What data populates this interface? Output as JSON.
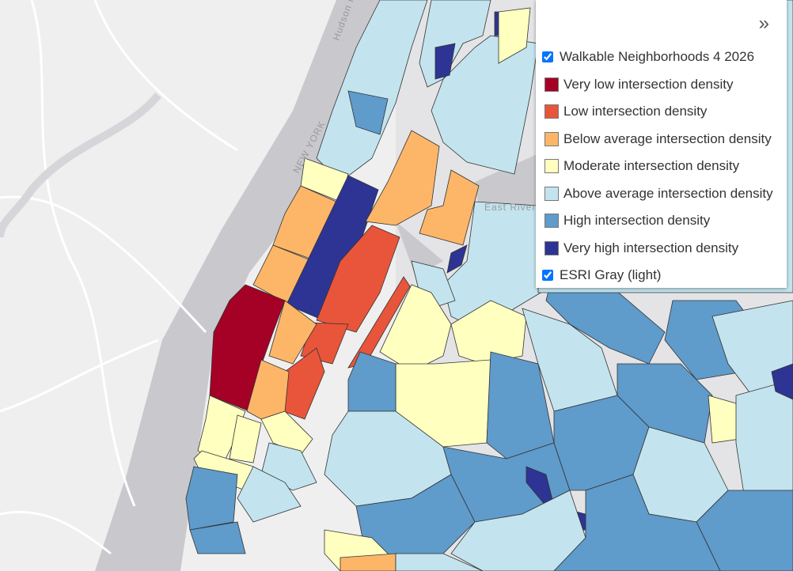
{
  "collapse_button": "»",
  "map_labels": {
    "hudson_river": "Hudson River",
    "new_york": "NEW YORK",
    "east_river": "East River"
  },
  "layers": [
    {
      "label": "Walkable Neighborhoods 4 2026",
      "checked": true,
      "legend": [
        {
          "label": "Very low intersection density",
          "color": "#a50026"
        },
        {
          "label": "Low intersection density",
          "color": "#e8553a"
        },
        {
          "label": "Below average intersection density",
          "color": "#fdb668"
        },
        {
          "label": "Moderate intersection density",
          "color": "#ffffc0"
        },
        {
          "label": "Above average intersection density",
          "color": "#c3e4ee"
        },
        {
          "label": "High intersection density",
          "color": "#5f9bcb"
        },
        {
          "label": "Very high intersection density",
          "color": "#2d3493"
        }
      ]
    },
    {
      "label": "ESRI Gray (light)",
      "checked": true
    }
  ]
}
